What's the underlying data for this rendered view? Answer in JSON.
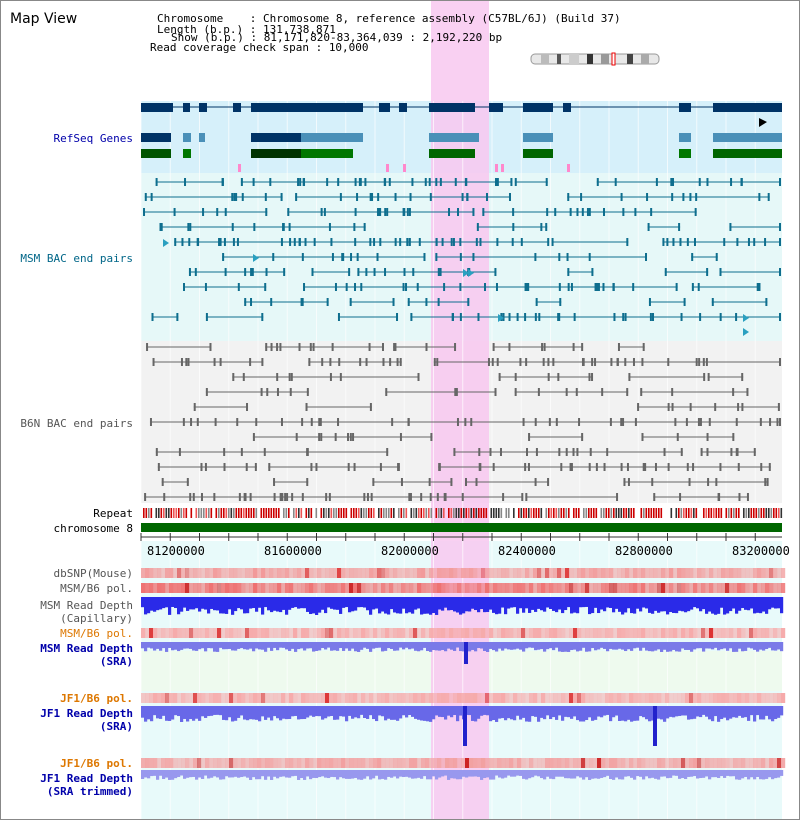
{
  "view_title": "Map View",
  "info": {
    "chromosome_label": "Chromosome    : ",
    "chromosome_value": "Chromosome 8, reference assembly (C57BL/6J) (Build 37)",
    "length_label": "Length (b.p.) : ",
    "length_value": "131,738,871",
    "show_label": "Show (b.p.) : ",
    "show_value": "81,171,820-83,364,039 : 2,192,220 bp",
    "coverage_label": "Read coverage check span : ",
    "coverage_value": "10,000"
  },
  "tracks": {
    "refseq": "RefSeq Genes",
    "msm_bac": "MSM BAC end pairs",
    "b6n_bac": "B6N BAC end pairs",
    "repeat": "Repeat",
    "chromosome": "chromosome 8",
    "dbsnp": "dbSNP(Mouse)",
    "msm_pol1": "MSM/B6 pol.",
    "msm_depth_cap_1": "MSM Read Depth",
    "msm_depth_cap_2": "(Capillary)",
    "msm_pol2": "MSM/B6 pol.",
    "msm_depth_sra_1": "MSM Read Depth",
    "msm_depth_sra_2": "(SRA)",
    "jf1_pol1": "JF1/B6 pol.",
    "jf1_depth_sra_1": "JF1 Read Depth",
    "jf1_depth_sra_2": "(SRA)",
    "jf1_pol2": "JF1/B6 pol.",
    "jf1_depth_trim_1": "JF1 Read Depth",
    "jf1_depth_trim_2": "(SRA trimmed)"
  },
  "axis_ticks": [
    "81200000",
    "81600000",
    "82000000",
    "82400000",
    "82800000",
    "83200000"
  ],
  "colors": {
    "refseq_label": "#0000aa",
    "msm_bac_label": "#006688",
    "b6n_bac_label": "#555555",
    "pol_orange": "#dd7700",
    "depth_blue": "#0000aa",
    "highlight": "#f8c8f0",
    "chromosome_bar": "#006600"
  }
}
